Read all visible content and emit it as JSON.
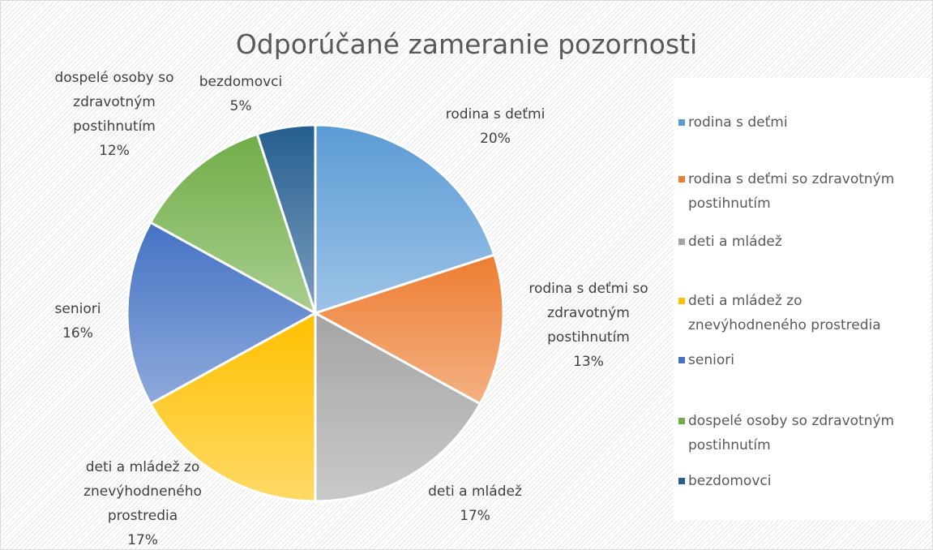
{
  "chart_data": {
    "type": "pie",
    "title": "Odporúčané zameranie pozornosti",
    "categories": [
      "rodina s deťmi",
      "rodina s deťmi so zdravotným postihnutím",
      "deti a mládež",
      "deti a mládež zo znevýhodneného prostredia",
      "seniori",
      "dospelé osoby so zdravotným postihnutím",
      "bezdomovci"
    ],
    "values": [
      20,
      13,
      17,
      17,
      16,
      12,
      5
    ],
    "value_labels": [
      "20%",
      "13%",
      "17%",
      "17%",
      "16%",
      "12%",
      "5%"
    ],
    "colors": [
      "#5b9bd5",
      "#ed7d31",
      "#a5a5a5",
      "#ffc000",
      "#4472c4",
      "#70ad47",
      "#255e91"
    ],
    "legend": "right"
  }
}
